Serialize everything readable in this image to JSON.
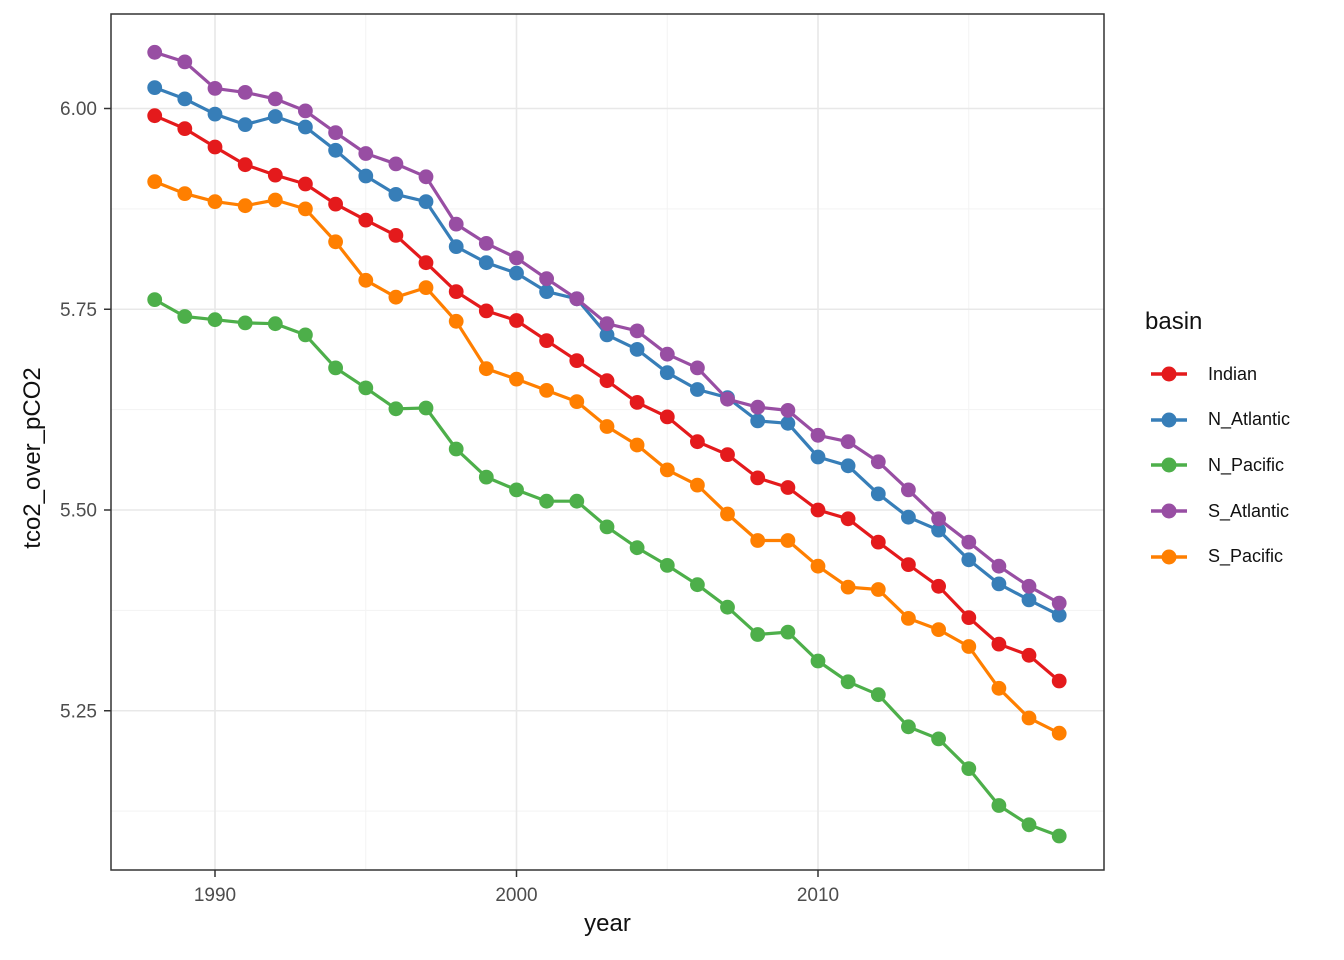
{
  "chart_data": {
    "type": "line",
    "title": "",
    "xlabel": "year",
    "ylabel": "tco2_over_pCO2",
    "legend": {
      "title": "basin",
      "position": "right"
    },
    "grid": "major+minor",
    "marker": "point",
    "x_ticks": [
      "1990",
      "2000",
      "2010"
    ],
    "y_ticks": [
      "6.00",
      "5.75",
      "5.50",
      "5.25"
    ],
    "xlim": [
      1986.5,
      2019.5
    ],
    "ylim": [
      5.05,
      6.12
    ],
    "x": [
      1988,
      1989,
      1990,
      1991,
      1992,
      1993,
      1994,
      1995,
      1996,
      1997,
      1998,
      1999,
      2000,
      2001,
      2002,
      2003,
      2004,
      2005,
      2006,
      2007,
      2008,
      2009,
      2010,
      2011,
      2012,
      2013,
      2014,
      2015,
      2016,
      2017,
      2018
    ],
    "series": [
      {
        "name": "Indian",
        "color": "#E41A1C",
        "values": [
          5.991,
          5.975,
          5.952,
          5.93,
          5.917,
          5.906,
          5.881,
          5.861,
          5.842,
          5.808,
          5.772,
          5.748,
          5.736,
          5.711,
          5.686,
          5.661,
          5.634,
          5.616,
          5.585,
          5.569,
          5.54,
          5.528,
          5.5,
          5.489,
          5.46,
          5.432,
          5.405,
          5.366,
          5.333,
          5.319,
          5.287
        ]
      },
      {
        "name": "N_Atlantic",
        "color": "#377EB8",
        "values": [
          6.026,
          6.012,
          5.993,
          5.98,
          5.99,
          5.977,
          5.948,
          5.916,
          5.893,
          5.884,
          5.828,
          5.808,
          5.795,
          5.772,
          5.763,
          5.718,
          5.7,
          5.671,
          5.65,
          5.64,
          5.611,
          5.608,
          5.566,
          5.555,
          5.52,
          5.491,
          5.475,
          5.438,
          5.408,
          5.388,
          5.369
        ]
      },
      {
        "name": "N_Pacific",
        "color": "#4DAF4A",
        "values": [
          5.762,
          5.741,
          5.737,
          5.733,
          5.732,
          5.718,
          5.677,
          5.652,
          5.626,
          5.627,
          5.576,
          5.541,
          5.525,
          5.511,
          5.511,
          5.479,
          5.453,
          5.431,
          5.407,
          5.379,
          5.345,
          5.348,
          5.312,
          5.286,
          5.27,
          5.23,
          5.215,
          5.178,
          5.132,
          5.108,
          5.094
        ]
      },
      {
        "name": "S_Atlantic",
        "color": "#984EA3",
        "values": [
          6.07,
          6.058,
          6.025,
          6.02,
          6.012,
          5.997,
          5.97,
          5.944,
          5.931,
          5.915,
          5.856,
          5.832,
          5.814,
          5.788,
          5.763,
          5.732,
          5.723,
          5.694,
          5.677,
          5.638,
          5.628,
          5.624,
          5.593,
          5.585,
          5.56,
          5.525,
          5.489,
          5.46,
          5.43,
          5.405,
          5.384
        ]
      },
      {
        "name": "S_Pacific",
        "color": "#FF7F00",
        "values": [
          5.909,
          5.894,
          5.884,
          5.879,
          5.886,
          5.875,
          5.834,
          5.786,
          5.765,
          5.777,
          5.735,
          5.676,
          5.663,
          5.649,
          5.635,
          5.604,
          5.581,
          5.55,
          5.531,
          5.495,
          5.462,
          5.462,
          5.43,
          5.404,
          5.401,
          5.365,
          5.351,
          5.33,
          5.278,
          5.241,
          5.222
        ]
      }
    ],
    "style": {
      "panel_border_color": "#333333",
      "major_grid_color": "#E8E8E8",
      "minor_grid_color": "#F3F3F3",
      "tick_color": "#333333",
      "tick_label_color": "#4D4D4D"
    }
  }
}
